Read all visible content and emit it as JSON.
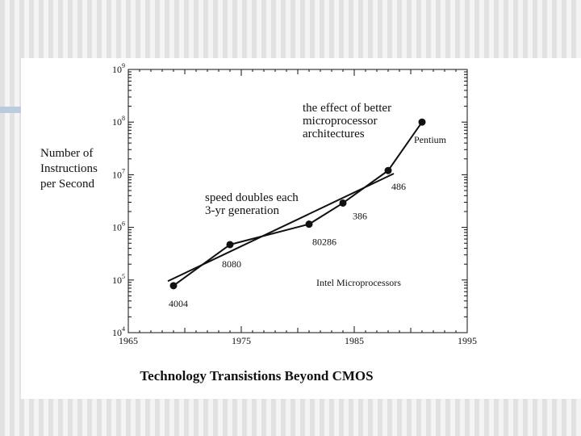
{
  "slide_title": "Technology Transistions Beyond CMOS",
  "chart_data": {
    "type": "scatter",
    "title": "Technology Transistions Beyond CMOS",
    "xlabel": "",
    "ylabel": [
      "Number of",
      "Instructions",
      "per Second"
    ],
    "xlim": [
      1965,
      1995
    ],
    "ylim": [
      10000,
      1000000000
    ],
    "yscale": "log",
    "x_ticks": [
      1965,
      1975,
      1985,
      1995
    ],
    "y_ticks": [
      {
        "value": 10000,
        "base": "10",
        "exp": "4"
      },
      {
        "value": 100000,
        "base": "10",
        "exp": "5"
      },
      {
        "value": 1000000,
        "base": "10",
        "exp": "6"
      },
      {
        "value": 10000000,
        "base": "10",
        "exp": "7"
      },
      {
        "value": 100000000,
        "base": "10",
        "exp": "8"
      },
      {
        "value": 1000000000,
        "base": "10",
        "exp": "9"
      }
    ],
    "series": [
      {
        "name": "Intel Microprocessors",
        "points": [
          {
            "label": "4004",
            "x": 1969,
            "y": 78000
          },
          {
            "label": "8080",
            "x": 1974,
            "y": 470000
          },
          {
            "label": "80286",
            "x": 1981,
            "y": 1150000
          },
          {
            "label": "386",
            "x": 1984,
            "y": 2900000
          },
          {
            "label": "486",
            "x": 1988,
            "y": 12000000
          },
          {
            "label": "Pentium",
            "x": 1991,
            "y": 100000000
          }
        ]
      }
    ],
    "trend_lines": [
      {
        "name": "speed doubles each 3-yr generation",
        "x": [
          1968.5,
          1988.5
        ],
        "y": [
          95000,
          10500000
        ]
      }
    ],
    "annotations": {
      "architecture": [
        "the effect of better",
        "microprocessor",
        "architectures"
      ],
      "speed": [
        "speed doubles each",
        "3-yr generation"
      ],
      "legend": "Intel Microprocessors"
    }
  }
}
